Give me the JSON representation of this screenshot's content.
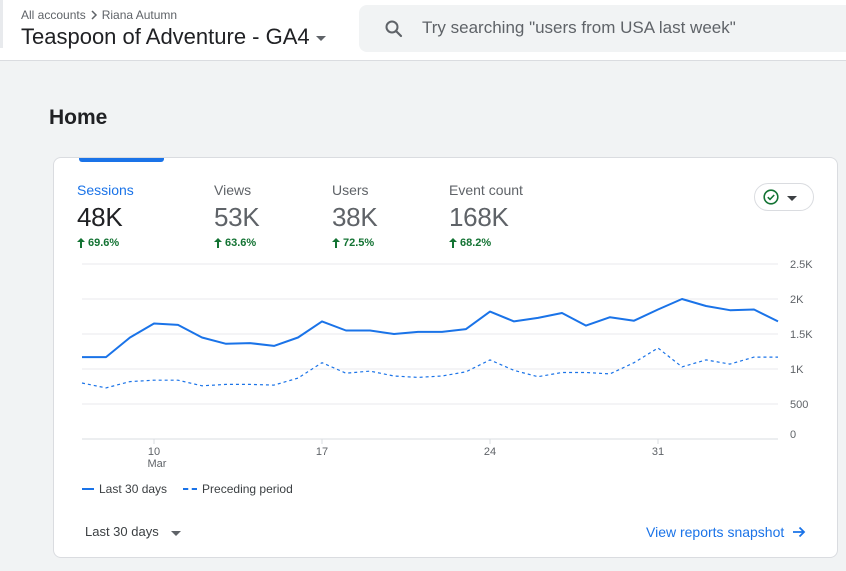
{
  "header": {
    "breadcrumb_root": "All accounts",
    "breadcrumb_account": "Riana Autumn",
    "property_name": "Teaspoon of Adventure - GA4",
    "search_placeholder": "Try searching \"users from USA last week\""
  },
  "page": {
    "title": "Home"
  },
  "metrics": [
    {
      "label": "Sessions",
      "value": "48K",
      "change": "69.6%"
    },
    {
      "label": "Views",
      "value": "53K",
      "change": "63.6%"
    },
    {
      "label": "Users",
      "value": "38K",
      "change": "72.5%"
    },
    {
      "label": "Event count",
      "value": "168K",
      "change": "68.2%"
    }
  ],
  "colors": {
    "accent": "#1a73e8",
    "positive": "#137333",
    "grid": "#e8eaed"
  },
  "chart_data": {
    "type": "line",
    "y_ticks": [
      "2.5K",
      "2K",
      "1.5K",
      "1K",
      "500",
      "0"
    ],
    "ylim": [
      0,
      2500
    ],
    "x_ticks": [
      {
        "index": 3,
        "label": "10",
        "sublabel": "Mar"
      },
      {
        "index": 10,
        "label": "17",
        "sublabel": ""
      },
      {
        "index": 17,
        "label": "24",
        "sublabel": ""
      },
      {
        "index": 24,
        "label": "31",
        "sublabel": ""
      }
    ],
    "series": [
      {
        "name": "Last 30 days",
        "style": "solid",
        "values": [
          1170,
          1170,
          1450,
          1650,
          1630,
          1450,
          1360,
          1370,
          1330,
          1450,
          1680,
          1550,
          1550,
          1500,
          1530,
          1530,
          1570,
          1820,
          1680,
          1730,
          1800,
          1620,
          1740,
          1690,
          1850,
          2000,
          1900,
          1840,
          1850,
          1680
        ]
      },
      {
        "name": "Preceding period",
        "style": "dashed",
        "values": [
          800,
          730,
          820,
          840,
          840,
          760,
          780,
          780,
          770,
          870,
          1090,
          940,
          970,
          900,
          880,
          900,
          960,
          1130,
          980,
          890,
          950,
          950,
          930,
          1090,
          1300,
          1030,
          1130,
          1070,
          1170,
          1170
        ]
      }
    ]
  },
  "legend": {
    "current": "Last 30 days",
    "previous": "Preceding period"
  },
  "footer": {
    "date_range": "Last 30 days",
    "snapshot_link": "View reports snapshot"
  }
}
